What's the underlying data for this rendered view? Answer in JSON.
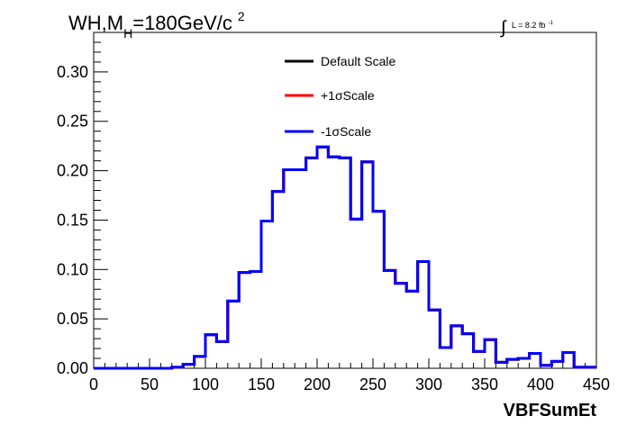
{
  "chart_data": {
    "type": "line",
    "title": {
      "prefix": "WH,M",
      "subscript": "H",
      "value": "=180GeV/c",
      "superscript": "2"
    },
    "luminosity": {
      "integral": "∫",
      "text": "L = 8.2 fb",
      "superscript": "-1"
    },
    "xlabel": "VBFSumEt",
    "ylabel": "",
    "xlim": [
      0,
      450
    ],
    "ylim": [
      0,
      0.34
    ],
    "x_ticks": [
      0,
      50,
      100,
      150,
      200,
      250,
      300,
      350,
      400,
      450
    ],
    "x_tick_labels": [
      "0",
      "50",
      "100",
      "150",
      "200",
      "250",
      "300",
      "350",
      "400",
      "450"
    ],
    "y_ticks": [
      0,
      0.05,
      0.1,
      0.15,
      0.2,
      0.25,
      0.3
    ],
    "y_tick_labels": [
      "0.00",
      "0.05",
      "0.10",
      "0.15",
      "0.20",
      "0.25",
      "0.30"
    ],
    "grid": false,
    "legend_position": "top-center",
    "bin_edges": [
      0,
      10,
      20,
      30,
      40,
      50,
      60,
      70,
      80,
      90,
      100,
      110,
      120,
      130,
      140,
      150,
      160,
      170,
      180,
      190,
      200,
      210,
      220,
      230,
      240,
      250,
      260,
      270,
      280,
      290,
      300,
      310,
      320,
      330,
      340,
      350,
      360,
      370,
      380,
      390,
      400,
      410,
      420,
      430,
      440,
      450
    ],
    "series": [
      {
        "name": "Default Scale",
        "color": "#000000",
        "values": [
          0,
          0,
          0,
          0,
          0,
          0,
          0,
          0.001,
          0.004,
          0.012,
          0.034,
          0.027,
          0.068,
          0.097,
          0.098,
          0.149,
          0.179,
          0.201,
          0.201,
          0.213,
          0.224,
          0.214,
          0.213,
          0.151,
          0.209,
          0.159,
          0.099,
          0.086,
          0.078,
          0.108,
          0.059,
          0.021,
          0.043,
          0.035,
          0.017,
          0.029,
          0.006,
          0.009,
          0.01,
          0.015,
          0.003,
          0.007,
          0.016,
          0.001,
          0.001
        ]
      },
      {
        "name": "+1σScale",
        "color": "#ff0000",
        "values": [
          0,
          0,
          0,
          0,
          0,
          0,
          0,
          0.001,
          0.004,
          0.012,
          0.034,
          0.027,
          0.068,
          0.097,
          0.098,
          0.149,
          0.179,
          0.201,
          0.201,
          0.213,
          0.224,
          0.214,
          0.213,
          0.151,
          0.209,
          0.159,
          0.099,
          0.086,
          0.078,
          0.108,
          0.059,
          0.021,
          0.043,
          0.035,
          0.017,
          0.029,
          0.006,
          0.009,
          0.01,
          0.015,
          0.003,
          0.007,
          0.016,
          0.001,
          0.001
        ]
      },
      {
        "name": "-1σScale",
        "color": "#0000ff",
        "values": [
          0,
          0,
          0,
          0,
          0,
          0,
          0,
          0.001,
          0.004,
          0.012,
          0.034,
          0.027,
          0.068,
          0.097,
          0.098,
          0.149,
          0.179,
          0.201,
          0.201,
          0.213,
          0.224,
          0.214,
          0.213,
          0.151,
          0.209,
          0.159,
          0.099,
          0.086,
          0.078,
          0.108,
          0.059,
          0.021,
          0.043,
          0.035,
          0.017,
          0.029,
          0.006,
          0.009,
          0.01,
          0.015,
          0.003,
          0.007,
          0.016,
          0.001,
          0.001
        ]
      }
    ]
  }
}
